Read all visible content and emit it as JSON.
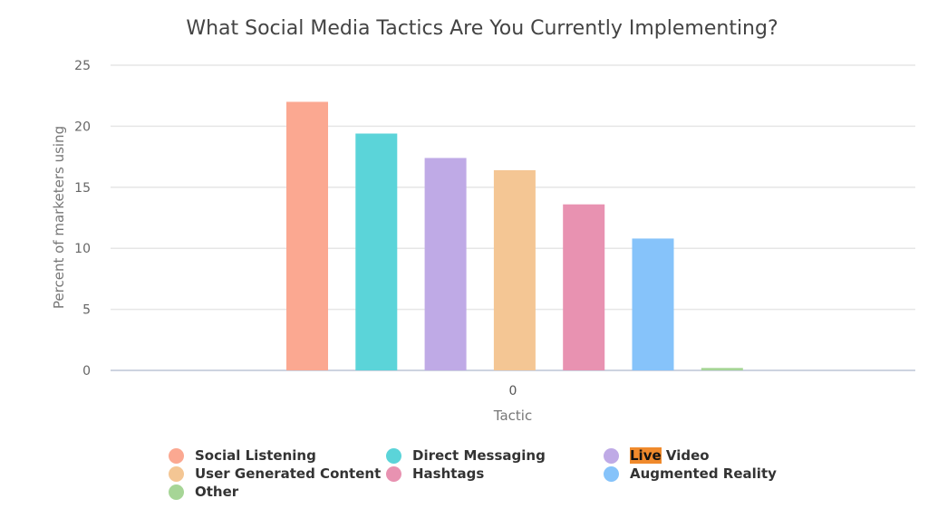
{
  "chart_data": {
    "type": "bar",
    "title": "What Social Media Tactics Are You Currently Implementing?",
    "xlabel": "Tactic",
    "ylabel": "Percent of marketers using",
    "categories": [
      "0"
    ],
    "ylim": [
      0,
      25
    ],
    "yticks": [
      0,
      5,
      10,
      15,
      20,
      25
    ],
    "grid": true,
    "legend_position": "bottom",
    "series": [
      {
        "name": "Social Listening",
        "values": [
          22.0
        ],
        "color": "#fba891"
      },
      {
        "name": "Direct Messaging",
        "values": [
          19.4
        ],
        "color": "#5bd4d9"
      },
      {
        "name": "Live Video",
        "values": [
          17.4
        ],
        "color": "#bfaae6"
      },
      {
        "name": "User Generated Content",
        "values": [
          16.4
        ],
        "color": "#f4c694"
      },
      {
        "name": "Hashtags",
        "values": [
          13.6
        ],
        "color": "#e892b1"
      },
      {
        "name": "Augmented Reality",
        "values": [
          10.8
        ],
        "color": "#86c3fa"
      },
      {
        "name": "Other",
        "values": [
          0.2
        ],
        "color": "#a6d596"
      }
    ]
  },
  "legend_highlight": "Live"
}
